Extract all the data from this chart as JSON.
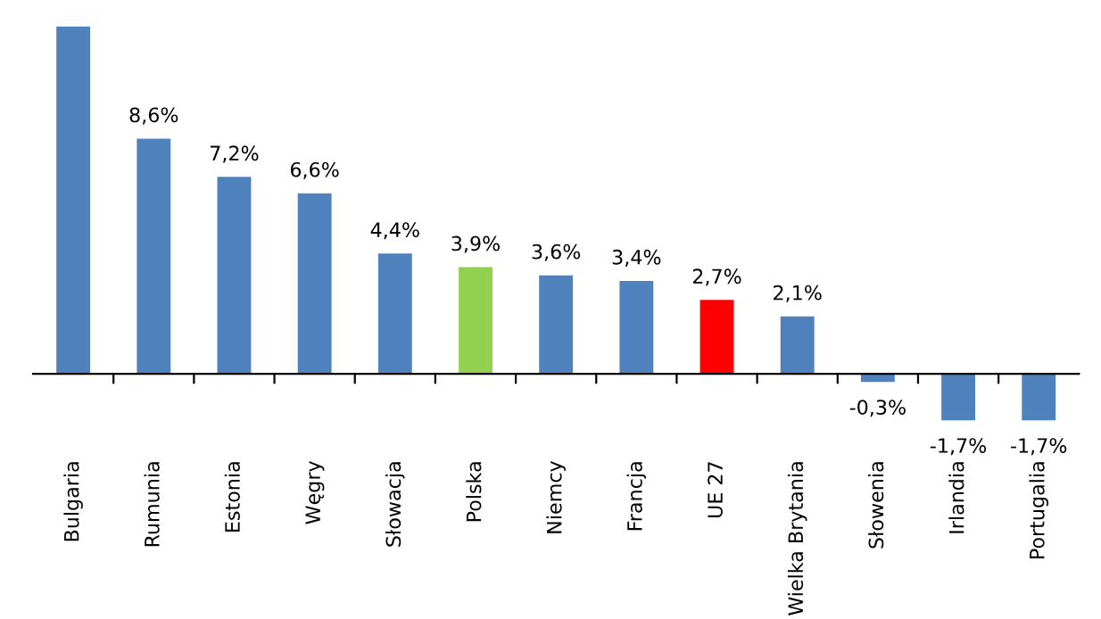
{
  "chart_data": {
    "type": "bar",
    "categories": [
      "Bulgaria",
      "Rumunia",
      "Estonia",
      "Węgry",
      "Słowacja",
      "Polska",
      "Niemcy",
      "Francja",
      "UE 27",
      "Wielka Brytania",
      "Słowenia",
      "Irlandia",
      "Portugalia"
    ],
    "values": [
      12.7,
      8.6,
      7.2,
      6.6,
      4.4,
      3.9,
      3.6,
      3.4,
      2.7,
      2.1,
      -0.3,
      -1.7,
      -1.7
    ],
    "value_labels": [
      null,
      "8,6%",
      "7,2%",
      "6,6%",
      "4,4%",
      "3,9%",
      "3,6%",
      "3,4%",
      "2,7%",
      "2,1%",
      "-0,3%",
      "-1,7%",
      "-1,7%"
    ],
    "colors": [
      "#4f81bd",
      "#4f81bd",
      "#4f81bd",
      "#4f81bd",
      "#4f81bd",
      "#92d050",
      "#4f81bd",
      "#4f81bd",
      "#ff0000",
      "#4f81bd",
      "#4f81bd",
      "#4f81bd",
      "#4f81bd"
    ],
    "grid": false,
    "legend": false
  }
}
